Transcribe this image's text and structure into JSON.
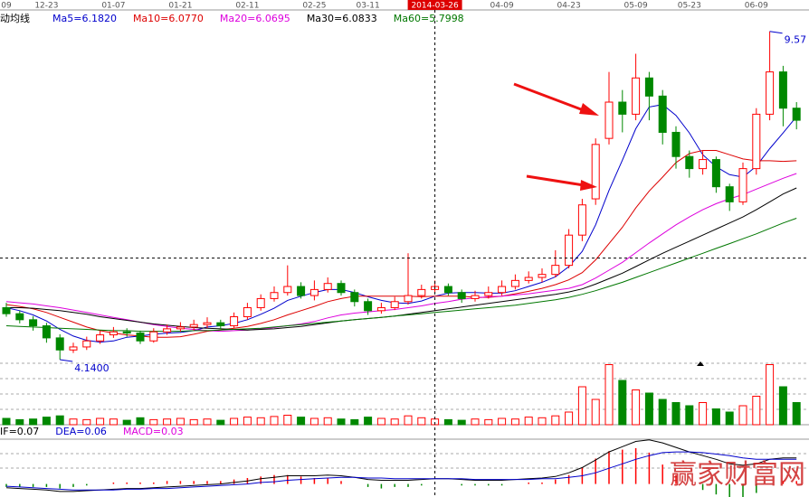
{
  "chart_data": {
    "type": "candlestick",
    "categories": [
      "09",
      null,
      null,
      "12-23",
      null,
      null,
      null,
      null,
      "01-07",
      null,
      null,
      null,
      null,
      "01-21",
      null,
      null,
      null,
      null,
      "02-11",
      null,
      null,
      null,
      null,
      "02-25",
      null,
      null,
      null,
      "03-11",
      null,
      null,
      null,
      null,
      "2014-03-26",
      null,
      null,
      null,
      null,
      "04-09",
      null,
      null,
      null,
      null,
      "04-23",
      null,
      null,
      null,
      null,
      "05-09",
      null,
      null,
      null,
      "05-23",
      null,
      null,
      null,
      null,
      "06-09",
      null,
      null,
      null
    ],
    "open": [
      5.0,
      4.9,
      4.8,
      4.7,
      4.5,
      4.3,
      4.35,
      4.45,
      4.55,
      4.6,
      4.58,
      4.45,
      4.6,
      4.65,
      4.68,
      4.72,
      4.75,
      4.7,
      4.85,
      5.0,
      5.15,
      5.25,
      5.35,
      5.2,
      5.3,
      5.4,
      5.25,
      5.1,
      4.95,
      5.0,
      5.1,
      5.2,
      5.3,
      5.35,
      5.25,
      5.15,
      5.2,
      5.25,
      5.35,
      5.45,
      5.5,
      5.55,
      5.7,
      6.2,
      6.8,
      7.8,
      8.4,
      8.2,
      8.8,
      8.5,
      7.9,
      7.5,
      7.3,
      7.45,
      7.0,
      6.75,
      7.3,
      8.2,
      8.9,
      8.3
    ],
    "high": [
      5.08,
      4.95,
      4.86,
      4.75,
      4.56,
      4.42,
      4.52,
      4.62,
      4.68,
      4.66,
      4.62,
      4.66,
      4.72,
      4.76,
      4.8,
      4.84,
      4.8,
      4.92,
      5.08,
      5.22,
      5.35,
      5.7,
      5.42,
      5.45,
      5.5,
      5.45,
      5.3,
      5.15,
      5.08,
      5.18,
      5.9,
      5.38,
      5.45,
      5.4,
      5.3,
      5.28,
      5.35,
      5.45,
      5.55,
      5.6,
      5.65,
      5.95,
      6.3,
      6.8,
      7.8,
      8.9,
      8.6,
      9.2,
      8.9,
      8.6,
      8.0,
      7.6,
      7.6,
      7.5,
      7.05,
      7.4,
      8.3,
      9.57,
      9.0,
      8.4
    ],
    "low": [
      4.85,
      4.74,
      4.62,
      4.42,
      4.14,
      4.25,
      4.3,
      4.4,
      4.5,
      4.52,
      4.4,
      4.42,
      4.55,
      4.6,
      4.62,
      4.66,
      4.64,
      4.66,
      4.8,
      4.95,
      5.1,
      5.2,
      5.15,
      5.12,
      5.25,
      5.2,
      5.02,
      4.88,
      4.9,
      4.96,
      5.05,
      5.15,
      5.25,
      5.2,
      5.08,
      5.1,
      5.15,
      5.2,
      5.3,
      5.4,
      5.42,
      5.5,
      5.65,
      6.1,
      6.7,
      7.7,
      7.9,
      8.1,
      8.1,
      7.7,
      7.3,
      7.15,
      7.2,
      6.9,
      6.6,
      6.7,
      7.2,
      8.1,
      8.0,
      7.95
    ],
    "close": [
      4.9,
      4.8,
      4.7,
      4.5,
      4.3,
      4.35,
      4.45,
      4.55,
      4.6,
      4.58,
      4.45,
      4.6,
      4.65,
      4.68,
      4.72,
      4.75,
      4.7,
      4.85,
      5.0,
      5.15,
      5.25,
      5.35,
      5.2,
      5.3,
      5.4,
      5.25,
      5.1,
      4.95,
      5.0,
      5.1,
      5.2,
      5.3,
      5.35,
      5.25,
      5.15,
      5.2,
      5.25,
      5.35,
      5.45,
      5.5,
      5.55,
      5.7,
      6.2,
      6.7,
      7.7,
      8.4,
      8.2,
      8.8,
      8.5,
      7.9,
      7.5,
      7.3,
      7.45,
      7.0,
      6.75,
      7.3,
      8.2,
      8.9,
      8.3,
      8.1
    ],
    "ylim": [
      4.11,
      9.91
    ],
    "up_color": "#ff0000",
    "down_color": "#008800",
    "legend_title": "动均线",
    "series": [
      {
        "name": "Ma5=6.1820",
        "color": "#0000cc",
        "values": [
          5.0,
          4.95,
          4.88,
          4.78,
          4.64,
          4.53,
          4.46,
          4.43,
          4.45,
          4.51,
          4.53,
          4.56,
          4.58,
          4.59,
          4.62,
          4.68,
          4.7,
          4.74,
          4.8,
          4.89,
          4.99,
          5.12,
          5.19,
          5.25,
          5.3,
          5.3,
          5.25,
          5.18,
          5.12,
          5.08,
          5.07,
          5.11,
          5.19,
          5.24,
          5.25,
          5.25,
          5.24,
          5.24,
          5.28,
          5.35,
          5.42,
          5.51,
          5.68,
          5.93,
          6.37,
          6.94,
          7.44,
          7.96,
          8.32,
          8.36,
          8.18,
          7.89,
          7.53,
          7.33,
          7.2,
          7.16,
          7.34,
          7.63,
          7.89,
          8.16
        ]
      },
      {
        "name": "Ma10=6.0770",
        "color": "#dd0000",
        "values": [
          5.05,
          5.02,
          4.98,
          4.92,
          4.84,
          4.76,
          4.68,
          4.62,
          4.58,
          4.55,
          4.53,
          4.51,
          4.51,
          4.52,
          4.56,
          4.61,
          4.63,
          4.66,
          4.69,
          4.74,
          4.8,
          4.88,
          4.95,
          5.02,
          5.1,
          5.15,
          5.19,
          5.19,
          5.19,
          5.19,
          5.19,
          5.18,
          5.19,
          5.19,
          5.19,
          5.17,
          5.17,
          5.19,
          5.23,
          5.27,
          5.32,
          5.38,
          5.46,
          5.58,
          5.79,
          6.06,
          6.33,
          6.65,
          6.93,
          7.16,
          7.4,
          7.55,
          7.6,
          7.6,
          7.53,
          7.46,
          7.43,
          7.43,
          7.42,
          7.43
        ]
      },
      {
        "name": "Ma20=6.0695",
        "color": "#dd00dd",
        "values": [
          5.1,
          5.08,
          5.06,
          5.03,
          5.0,
          4.96,
          4.92,
          4.88,
          4.84,
          4.8,
          4.76,
          4.72,
          4.69,
          4.66,
          4.64,
          4.62,
          4.61,
          4.62,
          4.63,
          4.65,
          4.67,
          4.7,
          4.73,
          4.77,
          4.83,
          4.88,
          4.91,
          4.93,
          4.95,
          4.97,
          5.0,
          5.03,
          5.07,
          5.1,
          5.14,
          5.16,
          5.18,
          5.19,
          5.21,
          5.23,
          5.26,
          5.29,
          5.32,
          5.38,
          5.49,
          5.62,
          5.75,
          5.91,
          6.07,
          6.22,
          6.37,
          6.5,
          6.62,
          6.72,
          6.8,
          6.87,
          6.96,
          7.05,
          7.14,
          7.22
        ]
      },
      {
        "name": "Ma30=6.0833",
        "color": "#000000",
        "values": [
          5.0,
          5.0,
          4.99,
          4.97,
          4.95,
          4.92,
          4.89,
          4.85,
          4.82,
          4.79,
          4.76,
          4.73,
          4.71,
          4.69,
          4.67,
          4.66,
          4.65,
          4.64,
          4.63,
          4.64,
          4.65,
          4.67,
          4.69,
          4.72,
          4.75,
          4.78,
          4.8,
          4.82,
          4.84,
          4.86,
          4.89,
          4.92,
          4.95,
          4.98,
          5.01,
          5.04,
          5.07,
          5.1,
          5.13,
          5.16,
          5.19,
          5.22,
          5.26,
          5.31,
          5.39,
          5.48,
          5.57,
          5.68,
          5.79,
          5.9,
          6.0,
          6.1,
          6.2,
          6.3,
          6.4,
          6.5,
          6.62,
          6.75,
          6.88,
          6.98
        ]
      },
      {
        "name": "Ma60=5.7998",
        "color": "#007700",
        "values": [
          4.7,
          4.69,
          4.68,
          4.67,
          4.66,
          4.65,
          4.64,
          4.63,
          4.62,
          4.62,
          4.61,
          4.61,
          4.61,
          4.61,
          4.62,
          4.62,
          4.63,
          4.64,
          4.65,
          4.66,
          4.68,
          4.7,
          4.72,
          4.74,
          4.76,
          4.78,
          4.8,
          4.82,
          4.84,
          4.86,
          4.88,
          4.9,
          4.92,
          4.94,
          4.96,
          4.98,
          5.0,
          5.02,
          5.04,
          5.07,
          5.1,
          5.13,
          5.17,
          5.22,
          5.28,
          5.35,
          5.42,
          5.5,
          5.58,
          5.66,
          5.74,
          5.82,
          5.9,
          5.98,
          6.06,
          6.14,
          6.22,
          6.31,
          6.4,
          6.48
        ]
      }
    ],
    "annotations": [
      {
        "text": "9.57",
        "price": 9.57,
        "index": 57
      },
      {
        "text": "4.1400",
        "price": 4.14,
        "index": 4
      }
    ],
    "crosshair": {
      "index": 32,
      "price": 5.82
    },
    "volume": [
      10,
      8,
      9,
      12,
      14,
      9,
      8,
      10,
      9,
      7,
      11,
      8,
      9,
      10,
      8,
      9,
      7,
      10,
      12,
      11,
      13,
      15,
      12,
      10,
      11,
      9,
      8,
      12,
      10,
      9,
      14,
      11,
      9,
      8,
      7,
      9,
      8,
      10,
      9,
      12,
      11,
      14,
      20,
      60,
      40,
      95,
      70,
      55,
      50,
      40,
      35,
      30,
      35,
      25,
      20,
      30,
      45,
      95,
      60,
      35
    ],
    "vlim": [
      0,
      100
    ],
    "macd": {
      "legend": [
        {
          "name": "IF=0.07",
          "color": "#000000"
        },
        {
          "name": "DEA=0.06",
          "color": "#0000cc"
        },
        {
          "name": "MACD=0.03",
          "color": "#dd00dd"
        }
      ],
      "ylim": [
        -0.15,
        0.6
      ],
      "dif": [
        -0.05,
        -0.06,
        -0.07,
        -0.08,
        -0.1,
        -0.1,
        -0.09,
        -0.08,
        -0.07,
        -0.06,
        -0.06,
        -0.05,
        -0.04,
        -0.03,
        -0.02,
        -0.01,
        0,
        0.02,
        0.04,
        0.07,
        0.09,
        0.11,
        0.11,
        0.11,
        0.12,
        0.11,
        0.09,
        0.06,
        0.05,
        0.05,
        0.05,
        0.06,
        0.07,
        0.07,
        0.06,
        0.05,
        0.05,
        0.05,
        0.06,
        0.07,
        0.08,
        0.1,
        0.15,
        0.22,
        0.32,
        0.43,
        0.5,
        0.57,
        0.59,
        0.55,
        0.49,
        0.43,
        0.38,
        0.33,
        0.27,
        0.25,
        0.27,
        0.33,
        0.35,
        0.35
      ],
      "dea": [
        -0.03,
        -0.04,
        -0.05,
        -0.06,
        -0.07,
        -0.08,
        -0.08,
        -0.08,
        -0.08,
        -0.07,
        -0.07,
        -0.06,
        -0.06,
        -0.05,
        -0.04,
        -0.03,
        -0.02,
        -0.01,
        0,
        0.02,
        0.03,
        0.05,
        0.06,
        0.07,
        0.08,
        0.09,
        0.09,
        0.08,
        0.08,
        0.07,
        0.07,
        0.07,
        0.07,
        0.07,
        0.07,
        0.06,
        0.06,
        0.06,
        0.06,
        0.06,
        0.07,
        0.07,
        0.09,
        0.11,
        0.15,
        0.21,
        0.27,
        0.33,
        0.38,
        0.42,
        0.43,
        0.43,
        0.42,
        0.4,
        0.38,
        0.35,
        0.33,
        0.33,
        0.33,
        0.33
      ],
      "bars": [
        -0.04,
        -0.04,
        -0.04,
        -0.04,
        -0.06,
        -0.04,
        -0.02,
        0,
        0.02,
        0.02,
        0.02,
        0.02,
        0.04,
        0.04,
        0.04,
        0.04,
        0.04,
        0.06,
        0.08,
        0.1,
        0.12,
        0.12,
        0.1,
        0.08,
        0.08,
        0.04,
        0,
        -0.04,
        -0.06,
        -0.04,
        -0.04,
        -0.02,
        0,
        0,
        -0.02,
        -0.02,
        -0.02,
        -0.02,
        0,
        0.02,
        0.02,
        0.06,
        0.12,
        0.22,
        0.34,
        0.44,
        0.46,
        0.48,
        0.42,
        0.26,
        0.12,
        0,
        -0.08,
        -0.14,
        -0.22,
        -0.2,
        -0.12,
        0,
        0.04,
        0.04
      ]
    },
    "watermark": "赢家财富网"
  }
}
